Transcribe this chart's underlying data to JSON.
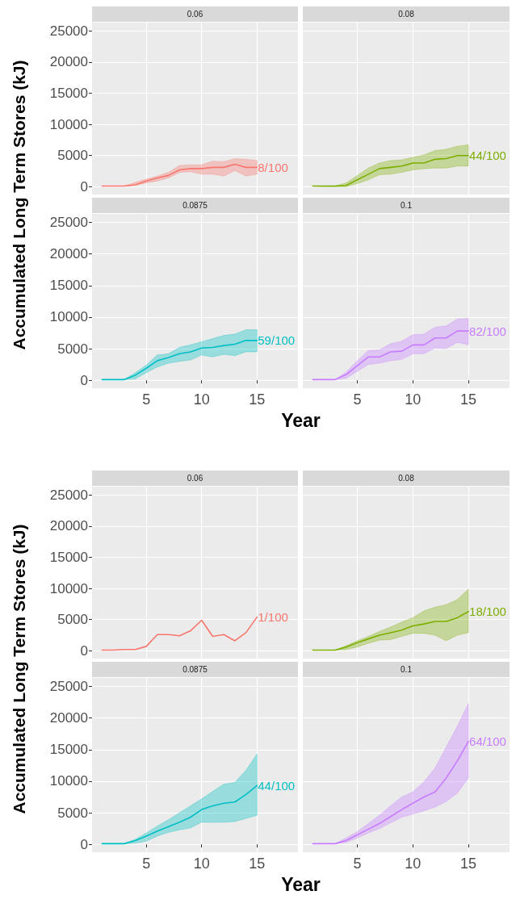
{
  "chart_data": [
    {
      "type": "line",
      "title": "0.06",
      "ylabel": "Accumulated Long Term Stores (kJ)",
      "xlim": [
        0.1,
        18.7
      ],
      "xticks": [
        5,
        10,
        15
      ],
      "ylim": [
        -1260,
        26350
      ],
      "yticks": [
        0,
        5000,
        10000,
        15000,
        20000,
        25000
      ],
      "grid": true,
      "tick_labels": "y",
      "x": [
        1,
        2,
        3,
        4,
        5,
        6,
        7,
        8,
        9,
        10,
        11,
        12,
        13,
        14,
        15
      ],
      "series": [
        {
          "color": "#f8766d",
          "values": [
            100,
            100,
            100,
            300,
            900,
            1400,
            1800,
            2700,
            2900,
            2900,
            3100,
            3100,
            3600,
            3100,
            3100
          ],
          "lower": [
            100,
            100,
            100,
            200,
            600,
            900,
            1400,
            2300,
            2400,
            2000,
            2000,
            1700,
            2600,
            1700,
            2000
          ],
          "upper": [
            100,
            100,
            100,
            700,
            1200,
            1700,
            2300,
            3400,
            3500,
            3500,
            4100,
            4000,
            4500,
            4400,
            4200
          ]
        }
      ],
      "annotations": [
        "8/100"
      ]
    },
    {
      "type": "line",
      "title": "0.08",
      "xlim": [
        0.1,
        18.7
      ],
      "xticks": [
        5,
        10,
        15
      ],
      "ylim": [
        -1260,
        26350
      ],
      "yticks": [
        0,
        5000,
        10000,
        15000,
        20000,
        25000
      ],
      "grid": true,
      "tick_labels": false,
      "x": [
        1,
        2,
        3,
        4,
        5,
        6,
        7,
        8,
        9,
        10,
        11,
        12,
        13,
        14,
        15
      ],
      "series": [
        {
          "color": "#7cae00",
          "values": [
            100,
            100,
            100,
            200,
            1100,
            2000,
            2900,
            3100,
            3300,
            3800,
            3800,
            4400,
            4500,
            5000,
            5000
          ],
          "lower": [
            100,
            0,
            0,
            0,
            500,
            1100,
            1900,
            2000,
            2300,
            2700,
            2900,
            3000,
            3000,
            3300,
            3300
          ],
          "upper": [
            100,
            100,
            100,
            600,
            1800,
            3000,
            3800,
            4200,
            4300,
            4700,
            5100,
            5800,
            6000,
            6500,
            6700
          ]
        }
      ],
      "annotations": [
        "44/100"
      ]
    },
    {
      "type": "line",
      "title": "0.0875",
      "xlabel": "Year",
      "xlim": [
        0.1,
        18.7
      ],
      "xticks": [
        5,
        10,
        15
      ],
      "ylim": [
        -1260,
        26350
      ],
      "yticks": [
        0,
        5000,
        10000,
        15000,
        20000,
        25000
      ],
      "grid": true,
      "x": [
        1,
        2,
        3,
        4,
        5,
        6,
        7,
        8,
        9,
        10,
        11,
        12,
        13,
        14,
        15
      ],
      "series": [
        {
          "color": "#00bfc4",
          "values": [
            100,
            100,
            100,
            800,
            1900,
            3100,
            3600,
            4200,
            4500,
            5100,
            5200,
            5500,
            5700,
            6300,
            6300
          ],
          "lower": [
            100,
            100,
            100,
            200,
            1200,
            2100,
            2700,
            3000,
            3200,
            4000,
            3700,
            4100,
            3900,
            4500,
            4500
          ],
          "upper": [
            100,
            100,
            100,
            1200,
            2400,
            4000,
            4200,
            5200,
            5600,
            6100,
            6600,
            7100,
            7300,
            8000,
            8000
          ]
        }
      ],
      "annotations": [
        "59/100"
      ]
    },
    {
      "type": "line",
      "title": "0.1",
      "xlim": [
        0.1,
        18.7
      ],
      "xticks": [
        5,
        10,
        15
      ],
      "ylim": [
        -1260,
        26350
      ],
      "yticks": [
        0,
        5000,
        10000,
        15000,
        20000,
        25000
      ],
      "grid": true,
      "tick_labels": "x",
      "x": [
        1,
        2,
        3,
        4,
        5,
        6,
        7,
        8,
        9,
        10,
        11,
        12,
        13,
        14,
        15
      ],
      "series": [
        {
          "color": "#c77cff",
          "values": [
            100,
            100,
            100,
            900,
            2300,
            3700,
            3700,
            4500,
            4600,
            5600,
            5600,
            6700,
            6700,
            7800,
            7800
          ],
          "lower": [
            100,
            100,
            100,
            300,
            1400,
            2500,
            2700,
            3100,
            3300,
            4200,
            4200,
            5100,
            5000,
            6000,
            5600
          ],
          "upper": [
            100,
            100,
            100,
            1300,
            3100,
            4700,
            4800,
            5800,
            6200,
            7200,
            7300,
            8400,
            8600,
            9700,
            9800
          ]
        }
      ],
      "annotations": [
        "82/100"
      ]
    },
    {
      "type": "line",
      "title": "0.06",
      "ylabel": "Accumulated Long Term Stores (kJ)",
      "xlim": [
        0.1,
        18.7
      ],
      "xticks": [
        5,
        10,
        15
      ],
      "ylim": [
        -1260,
        26350
      ],
      "yticks": [
        0,
        5000,
        10000,
        15000,
        20000,
        25000
      ],
      "grid": true,
      "tick_labels": "y",
      "x": [
        1,
        2,
        3,
        4,
        5,
        6,
        7,
        8,
        9,
        10,
        11,
        12,
        13,
        14,
        15
      ],
      "series": [
        {
          "color": "#f8766d",
          "values": [
            100,
            100,
            200,
            200,
            700,
            2600,
            2600,
            2400,
            3200,
            4900,
            2300,
            2600,
            1600,
            2900,
            5400
          ]
        }
      ],
      "annotations": [
        "1/100"
      ]
    },
    {
      "type": "line",
      "title": "0.08",
      "xlim": [
        0.1,
        18.7
      ],
      "xticks": [
        5,
        10,
        15
      ],
      "ylim": [
        -1260,
        26350
      ],
      "yticks": [
        0,
        5000,
        10000,
        15000,
        20000,
        25000
      ],
      "grid": true,
      "tick_labels": false,
      "x": [
        1,
        2,
        3,
        4,
        5,
        6,
        7,
        8,
        9,
        10,
        11,
        12,
        13,
        14,
        15
      ],
      "series": [
        {
          "color": "#7cae00",
          "values": [
            100,
            100,
            100,
            600,
            1300,
            1900,
            2500,
            2900,
            3300,
            4000,
            4300,
            4700,
            4700,
            5300,
            6300
          ],
          "lower": [
            100,
            100,
            100,
            200,
            600,
            1200,
            1700,
            1800,
            2300,
            2800,
            2800,
            2500,
            1600,
            2500,
            2900
          ],
          "upper": [
            100,
            100,
            100,
            800,
            1600,
            2300,
            3100,
            3800,
            4600,
            5300,
            6400,
            7000,
            7400,
            8200,
            9900
          ]
        }
      ],
      "annotations": [
        "18/100"
      ]
    },
    {
      "type": "line",
      "title": "0.0875",
      "xlabel": "Year",
      "xlim": [
        0.1,
        18.7
      ],
      "xticks": [
        5,
        10,
        15
      ],
      "ylim": [
        -1260,
        26350
      ],
      "yticks": [
        0,
        5000,
        10000,
        15000,
        20000,
        25000
      ],
      "grid": true,
      "x": [
        1,
        2,
        3,
        4,
        5,
        6,
        7,
        8,
        9,
        10,
        11,
        12,
        13,
        14,
        15
      ],
      "series": [
        {
          "color": "#00bfc4",
          "values": [
            100,
            100,
            100,
            600,
            1300,
            2100,
            2800,
            3500,
            4300,
            5500,
            6100,
            6500,
            6700,
            7900,
            9300
          ],
          "lower": [
            100,
            100,
            100,
            200,
            500,
            1300,
            1900,
            2300,
            2600,
            3500,
            3500,
            3500,
            3600,
            4100,
            4600
          ],
          "upper": [
            100,
            100,
            100,
            800,
            1800,
            2900,
            3900,
            5000,
            6100,
            7200,
            8400,
            9500,
            9800,
            11700,
            14300
          ]
        }
      ],
      "annotations": [
        "44/100"
      ]
    },
    {
      "type": "line",
      "title": "0.1",
      "xlim": [
        0.1,
        18.7
      ],
      "xticks": [
        5,
        10,
        15
      ],
      "ylim": [
        -1260,
        26350
      ],
      "yticks": [
        0,
        5000,
        10000,
        15000,
        20000,
        25000
      ],
      "grid": true,
      "tick_labels": "x",
      "x": [
        1,
        2,
        3,
        4,
        5,
        6,
        7,
        8,
        9,
        10,
        11,
        12,
        13,
        14,
        15
      ],
      "series": [
        {
          "color": "#c77cff",
          "values": [
            100,
            100,
            100,
            600,
            1500,
            2400,
            3300,
            4400,
            5500,
            6500,
            7500,
            8300,
            10500,
            13200,
            16300
          ],
          "lower": [
            100,
            100,
            100,
            300,
            1000,
            1800,
            2500,
            3400,
            4300,
            4800,
            5300,
            5900,
            6800,
            8100,
            10500
          ],
          "upper": [
            100,
            100,
            100,
            1000,
            2000,
            3300,
            4600,
            6100,
            7500,
            8300,
            9900,
            12100,
            15400,
            18700,
            22300
          ]
        }
      ],
      "annotations": [
        "64/100"
      ]
    }
  ]
}
